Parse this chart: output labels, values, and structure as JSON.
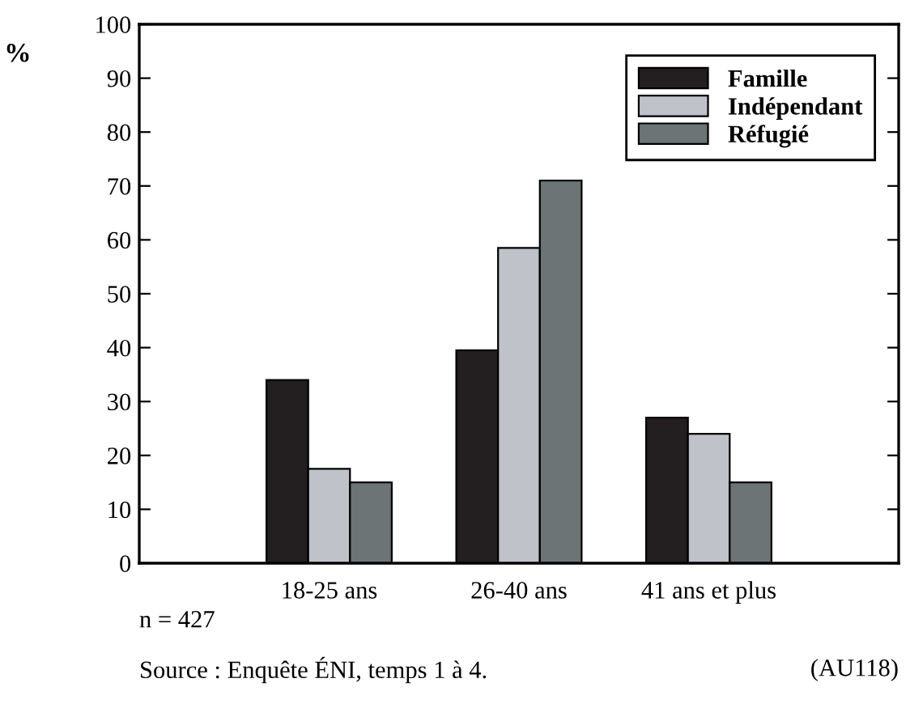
{
  "chart_data": {
    "type": "bar",
    "ylabel": "%",
    "categories": [
      "18-25 ans",
      "26-40 ans",
      "41 ans et plus"
    ],
    "series": [
      {
        "name": "Famille",
        "color": "#231f20",
        "values": [
          34,
          39.5,
          27
        ]
      },
      {
        "name": "Indépendant",
        "color": "#bfc2c8",
        "values": [
          17.5,
          58.5,
          24
        ]
      },
      {
        "name": "Réfugié",
        "color": "#6c7476",
        "values": [
          15,
          71,
          15
        ]
      }
    ],
    "ylim": [
      0,
      100
    ],
    "yticks": [
      0,
      10,
      20,
      30,
      40,
      50,
      60,
      70,
      80,
      90,
      100
    ],
    "grid": false,
    "legend": "top right",
    "annotations": [
      "n = 427",
      "Source : Enquête ÉNI, temps 1 à 4.",
      "(AU118)"
    ]
  }
}
